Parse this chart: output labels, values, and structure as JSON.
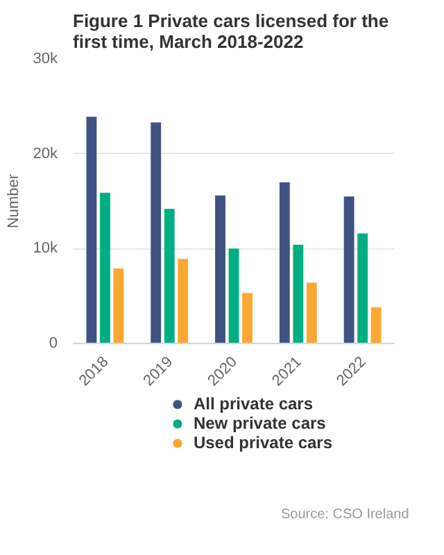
{
  "chart_data": {
    "type": "bar",
    "title": "Figure 1 Private cars licensed for the first time, March 2018-2022",
    "ylabel": "Number",
    "categories": [
      "2018",
      "2019",
      "2020",
      "2021",
      "2022"
    ],
    "series": [
      {
        "name": "All private cars",
        "color": "#3f5282",
        "values": [
          23900,
          23300,
          15600,
          17000,
          15500
        ]
      },
      {
        "name": "New private cars",
        "color": "#00ae84",
        "values": [
          15900,
          14200,
          10000,
          10400,
          11600
        ]
      },
      {
        "name": "Used private cars",
        "color": "#fba832",
        "values": [
          7900,
          8900,
          5300,
          6400,
          3800
        ]
      }
    ],
    "ylim": [
      0,
      30000
    ],
    "yticks": [
      {
        "value": 0,
        "label": "0"
      },
      {
        "value": 10000,
        "label": "10k"
      },
      {
        "value": 20000,
        "label": "20k"
      },
      {
        "value": 30000,
        "label": "30k"
      }
    ],
    "grid": "y",
    "legend": "bottom",
    "annotations": [
      "Source: CSO Ireland"
    ]
  }
}
